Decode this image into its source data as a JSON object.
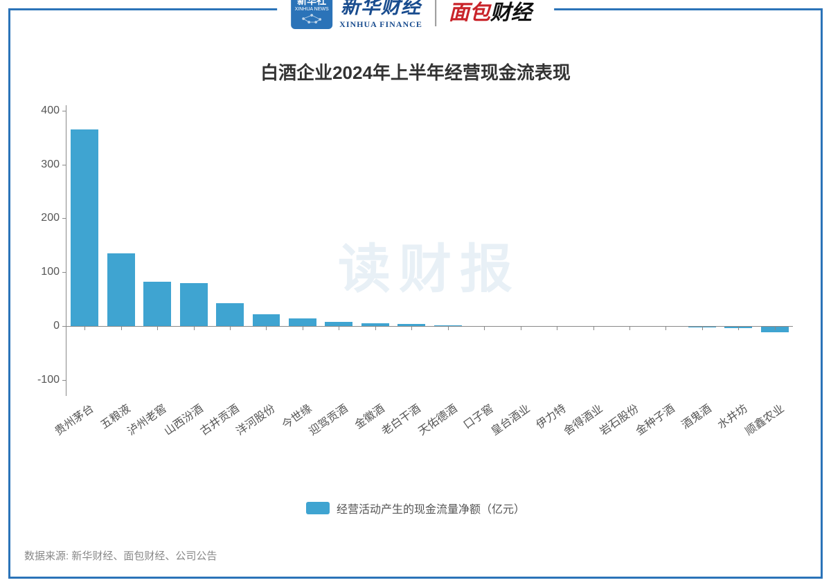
{
  "header": {
    "xinhua_badge_cn": "新华社",
    "xinhua_badge_en": "XINHUA NEWS",
    "xinhua_finance_cn": "新华财经",
    "xinhua_finance_en": "XINHUA FINANCE",
    "mianbao_red": "面包",
    "mianbao_black": "财经",
    "registered": "®"
  },
  "chart": {
    "type": "bar",
    "title": "白酒企业2024年上半年经营现金流表现",
    "watermark": "读财报",
    "legend_label": "经营活动产生的现金流量净额（亿元）",
    "bar_color": "#3fa4d1",
    "axis_color": "#888888",
    "text_color": "#555555",
    "title_color": "#333333",
    "title_fontsize": 26,
    "tick_fontsize": 16,
    "watermark_color": "#e8f0f6",
    "background_color": "#ffffff",
    "frame_border_color": "#2b73b8",
    "bar_width_ratio": 0.76,
    "y_axis": {
      "min": -130,
      "max": 410,
      "ticks": [
        -100,
        0,
        100,
        200,
        300,
        400
      ]
    },
    "categories": [
      "贵州茅台",
      "五粮液",
      "泸州老窖",
      "山西汾酒",
      "古井贡酒",
      "洋河股份",
      "今世缘",
      "迎驾贡酒",
      "金徽酒",
      "老白干酒",
      "天佑德酒",
      "口子窖",
      "皇台酒业",
      "伊力特",
      "舍得酒业",
      "岩石股份",
      "金种子酒",
      "酒鬼酒",
      "水井坊",
      "顺鑫农业"
    ],
    "values": [
      365,
      135,
      82,
      80,
      42,
      22,
      14,
      8,
      5,
      4,
      1,
      0,
      0,
      0,
      -1,
      -1,
      -2,
      -3,
      -4,
      -12
    ]
  },
  "source": "数据来源: 新华财经、面包财经、公司公告"
}
